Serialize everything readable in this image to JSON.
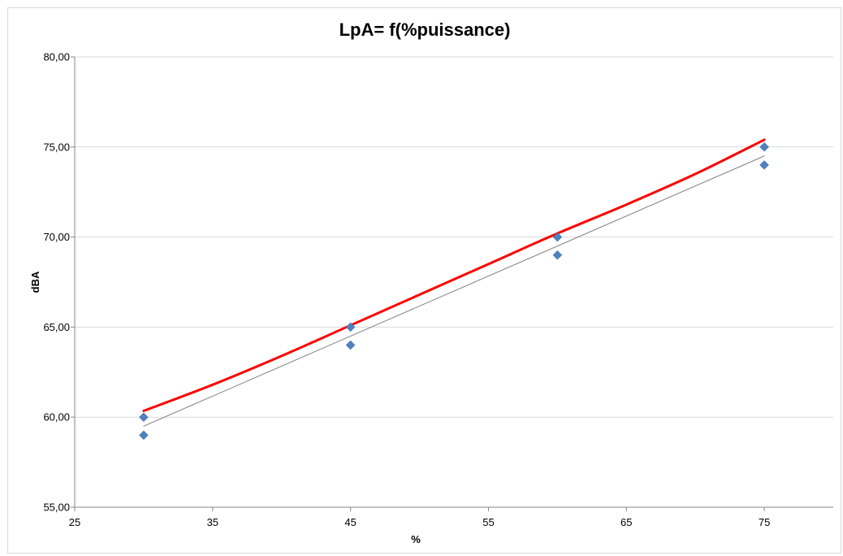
{
  "chart_data": {
    "type": "scatter",
    "title": "LpA= f(%puissance)",
    "xlabel": "%",
    "ylabel": "dBA",
    "xlim": [
      25,
      80
    ],
    "ylim": [
      55,
      80
    ],
    "x_ticks": [
      "25",
      "35",
      "45",
      "55",
      "65",
      "75"
    ],
    "y_ticks": [
      "55,00",
      "60,00",
      "65,00",
      "70,00",
      "75,00",
      "80,00"
    ],
    "grid": "horizontal",
    "legend": "none",
    "series": [
      {
        "type": "scatter",
        "color": "#4f81bd",
        "marker": "diamond",
        "points": [
          [
            30,
            60
          ],
          [
            30,
            59
          ],
          [
            45,
            65
          ],
          [
            45,
            64
          ],
          [
            60,
            70
          ],
          [
            60,
            69
          ],
          [
            75,
            75
          ],
          [
            75,
            74
          ]
        ]
      },
      {
        "type": "line",
        "color": "#ff0000",
        "points": [
          [
            30,
            60.35
          ],
          [
            35,
            61.8
          ],
          [
            40,
            63.4
          ],
          [
            45,
            65.1
          ],
          [
            50,
            66.8
          ],
          [
            55,
            68.5
          ],
          [
            60,
            70.2
          ],
          [
            65,
            71.8
          ],
          [
            70,
            73.5
          ],
          [
            75,
            75.4
          ]
        ]
      },
      {
        "type": "line",
        "color": "#7f7f7f",
        "points": [
          [
            30,
            59.5
          ],
          [
            75,
            74.5
          ]
        ]
      }
    ]
  }
}
